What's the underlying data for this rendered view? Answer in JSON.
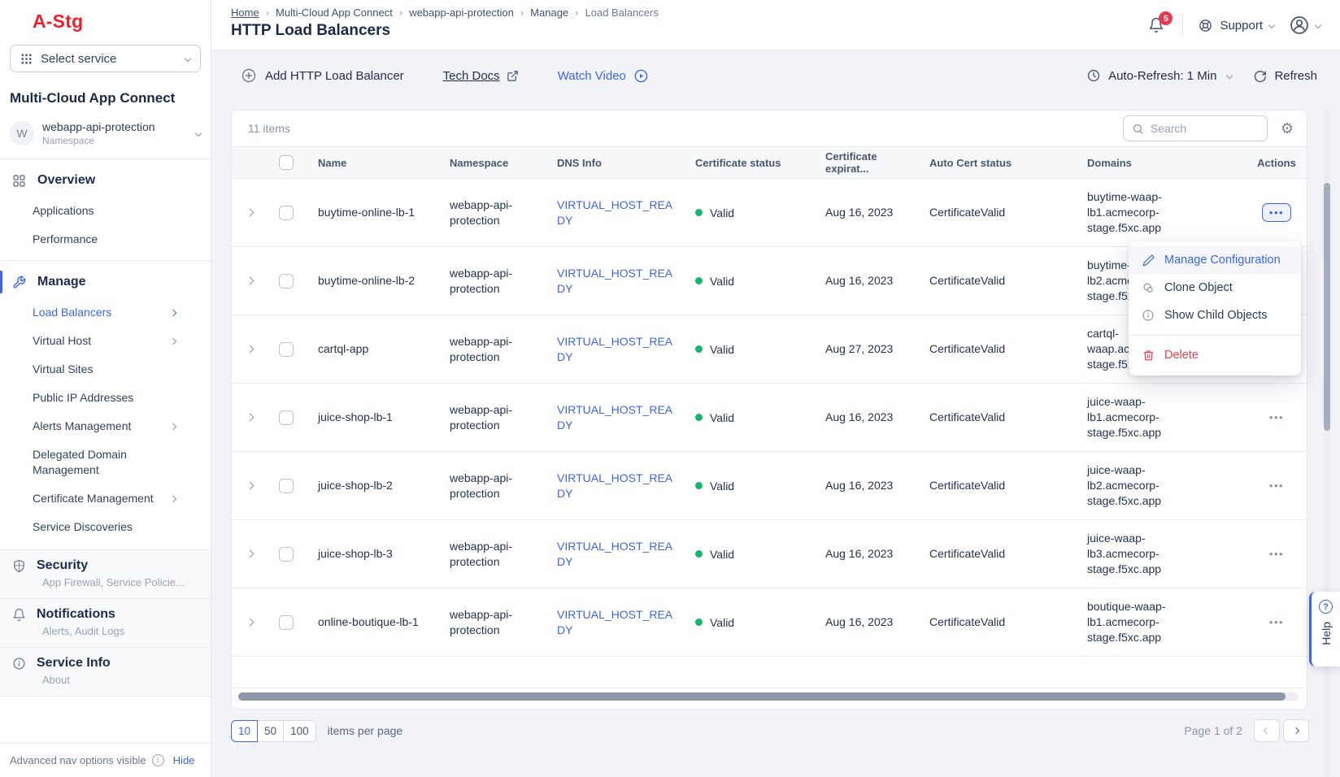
{
  "colors": {
    "accent": "#3d65e4",
    "logo_red": "#e8212e",
    "badge_red": "#e63950",
    "danger_red": "#ef4050",
    "status_green": "#12b76a"
  },
  "sidebar": {
    "logo": "A-Stg",
    "select_service_label": "Select service",
    "product_title": "Multi-Cloud App Connect",
    "namespace": {
      "initial": "W",
      "name": "webapp-api-protection",
      "type": "Namespace"
    },
    "nav": {
      "overview": "Overview",
      "applications": "Applications",
      "performance": "Performance",
      "manage": "Manage",
      "load_balancers": "Load Balancers",
      "virtual_host": "Virtual Host",
      "virtual_sites": "Virtual Sites",
      "public_ip": "Public IP Addresses",
      "alerts_management": "Alerts Management",
      "delegated_domain": "Delegated Domain Management",
      "certificate_management": "Certificate Management",
      "service_discoveries": "Service Discoveries"
    },
    "blocks": {
      "security": {
        "title": "Security",
        "subtitle": "App Firewall, Service Policie..."
      },
      "notifications": {
        "title": "Notifications",
        "subtitle": "Alerts, Audit Logs"
      },
      "service_info": {
        "title": "Service Info",
        "subtitle": "About"
      }
    },
    "footer": {
      "text": "Advanced nav options visible",
      "hide": "Hide"
    }
  },
  "header": {
    "breadcrumbs": [
      "Home",
      "Multi-Cloud App Connect",
      "webapp-api-protection",
      "Manage",
      "Load Balancers"
    ],
    "title": "HTTP Load Balancers",
    "notifications_count": "5",
    "support_label": "Support"
  },
  "toolbar": {
    "add_label": "Add HTTP Load Balancer",
    "tech_docs_label": "Tech Docs",
    "watch_video_label": "Watch Video",
    "auto_refresh_label": "Auto-Refresh: 1 Min",
    "refresh_label": "Refresh"
  },
  "table": {
    "items_count": "11 items",
    "search_placeholder": "Search",
    "columns": [
      "Name",
      "Namespace",
      "DNS Info",
      "Certificate status",
      "Certificate expirat...",
      "Auto Cert status",
      "Domains",
      "Actions"
    ],
    "rows": [
      {
        "name": "buytime-online-lb-1",
        "namespace": "webapp-api-protection",
        "dns": "VIRTUAL_HOST_READY",
        "status": "Valid",
        "expiration": "Aug 16, 2023",
        "auto_cert": "CertificateValid",
        "domains": "buytime-waap-lb1.acmecorp-stage.f5xc.app",
        "actions_active": true
      },
      {
        "name": "buytime-online-lb-2",
        "namespace": "webapp-api-protection",
        "dns": "VIRTUAL_HOST_READY",
        "status": "Valid",
        "expiration": "Aug 16, 2023",
        "auto_cert": "CertificateValid",
        "domains": "buytime-waap-lb2.acmecorp-stage.f5xc.app",
        "actions_active": false
      },
      {
        "name": "cartql-app",
        "namespace": "webapp-api-protection",
        "dns": "VIRTUAL_HOST_READY",
        "status": "Valid",
        "expiration": "Aug 27, 2023",
        "auto_cert": "CertificateValid",
        "domains": "cartql-waap.acmecorp-stage.f5xc.app",
        "actions_active": false
      },
      {
        "name": "juice-shop-lb-1",
        "namespace": "webapp-api-protection",
        "dns": "VIRTUAL_HOST_READY",
        "status": "Valid",
        "expiration": "Aug 16, 2023",
        "auto_cert": "CertificateValid",
        "domains": "juice-waap-lb1.acmecorp-stage.f5xc.app",
        "actions_active": false
      },
      {
        "name": "juice-shop-lb-2",
        "namespace": "webapp-api-protection",
        "dns": "VIRTUAL_HOST_READY",
        "status": "Valid",
        "expiration": "Aug 16, 2023",
        "auto_cert": "CertificateValid",
        "domains": "juice-waap-lb2.acmecorp-stage.f5xc.app",
        "actions_active": false
      },
      {
        "name": "juice-shop-lb-3",
        "namespace": "webapp-api-protection",
        "dns": "VIRTUAL_HOST_READY",
        "status": "Valid",
        "expiration": "Aug 16, 2023",
        "auto_cert": "CertificateValid",
        "domains": "juice-waap-lb3.acmecorp-stage.f5xc.app",
        "actions_active": false
      },
      {
        "name": "online-boutique-lb-1",
        "namespace": "webapp-api-protection",
        "dns": "VIRTUAL_HOST_READY",
        "status": "Valid",
        "expiration": "Aug 16, 2023",
        "auto_cert": "CertificateValid",
        "domains": "boutique-waap-lb1.acmecorp-stage.f5xc.app",
        "actions_active": false
      }
    ]
  },
  "menu": {
    "items": [
      {
        "label": "Manage Configuration",
        "icon": "pencil-icon",
        "style": "primary"
      },
      {
        "label": "Clone Object",
        "icon": "clone-icon",
        "style": "default"
      },
      {
        "label": "Show Child Objects",
        "icon": "info-icon",
        "style": "default"
      },
      {
        "label": "Delete",
        "icon": "trash-icon",
        "style": "danger"
      }
    ]
  },
  "pagination": {
    "options": [
      "10",
      "50",
      "100"
    ],
    "active_option": "10",
    "items_per_page_label": "items per page",
    "page_info": "Page 1 of 2"
  },
  "help_label": "Help"
}
